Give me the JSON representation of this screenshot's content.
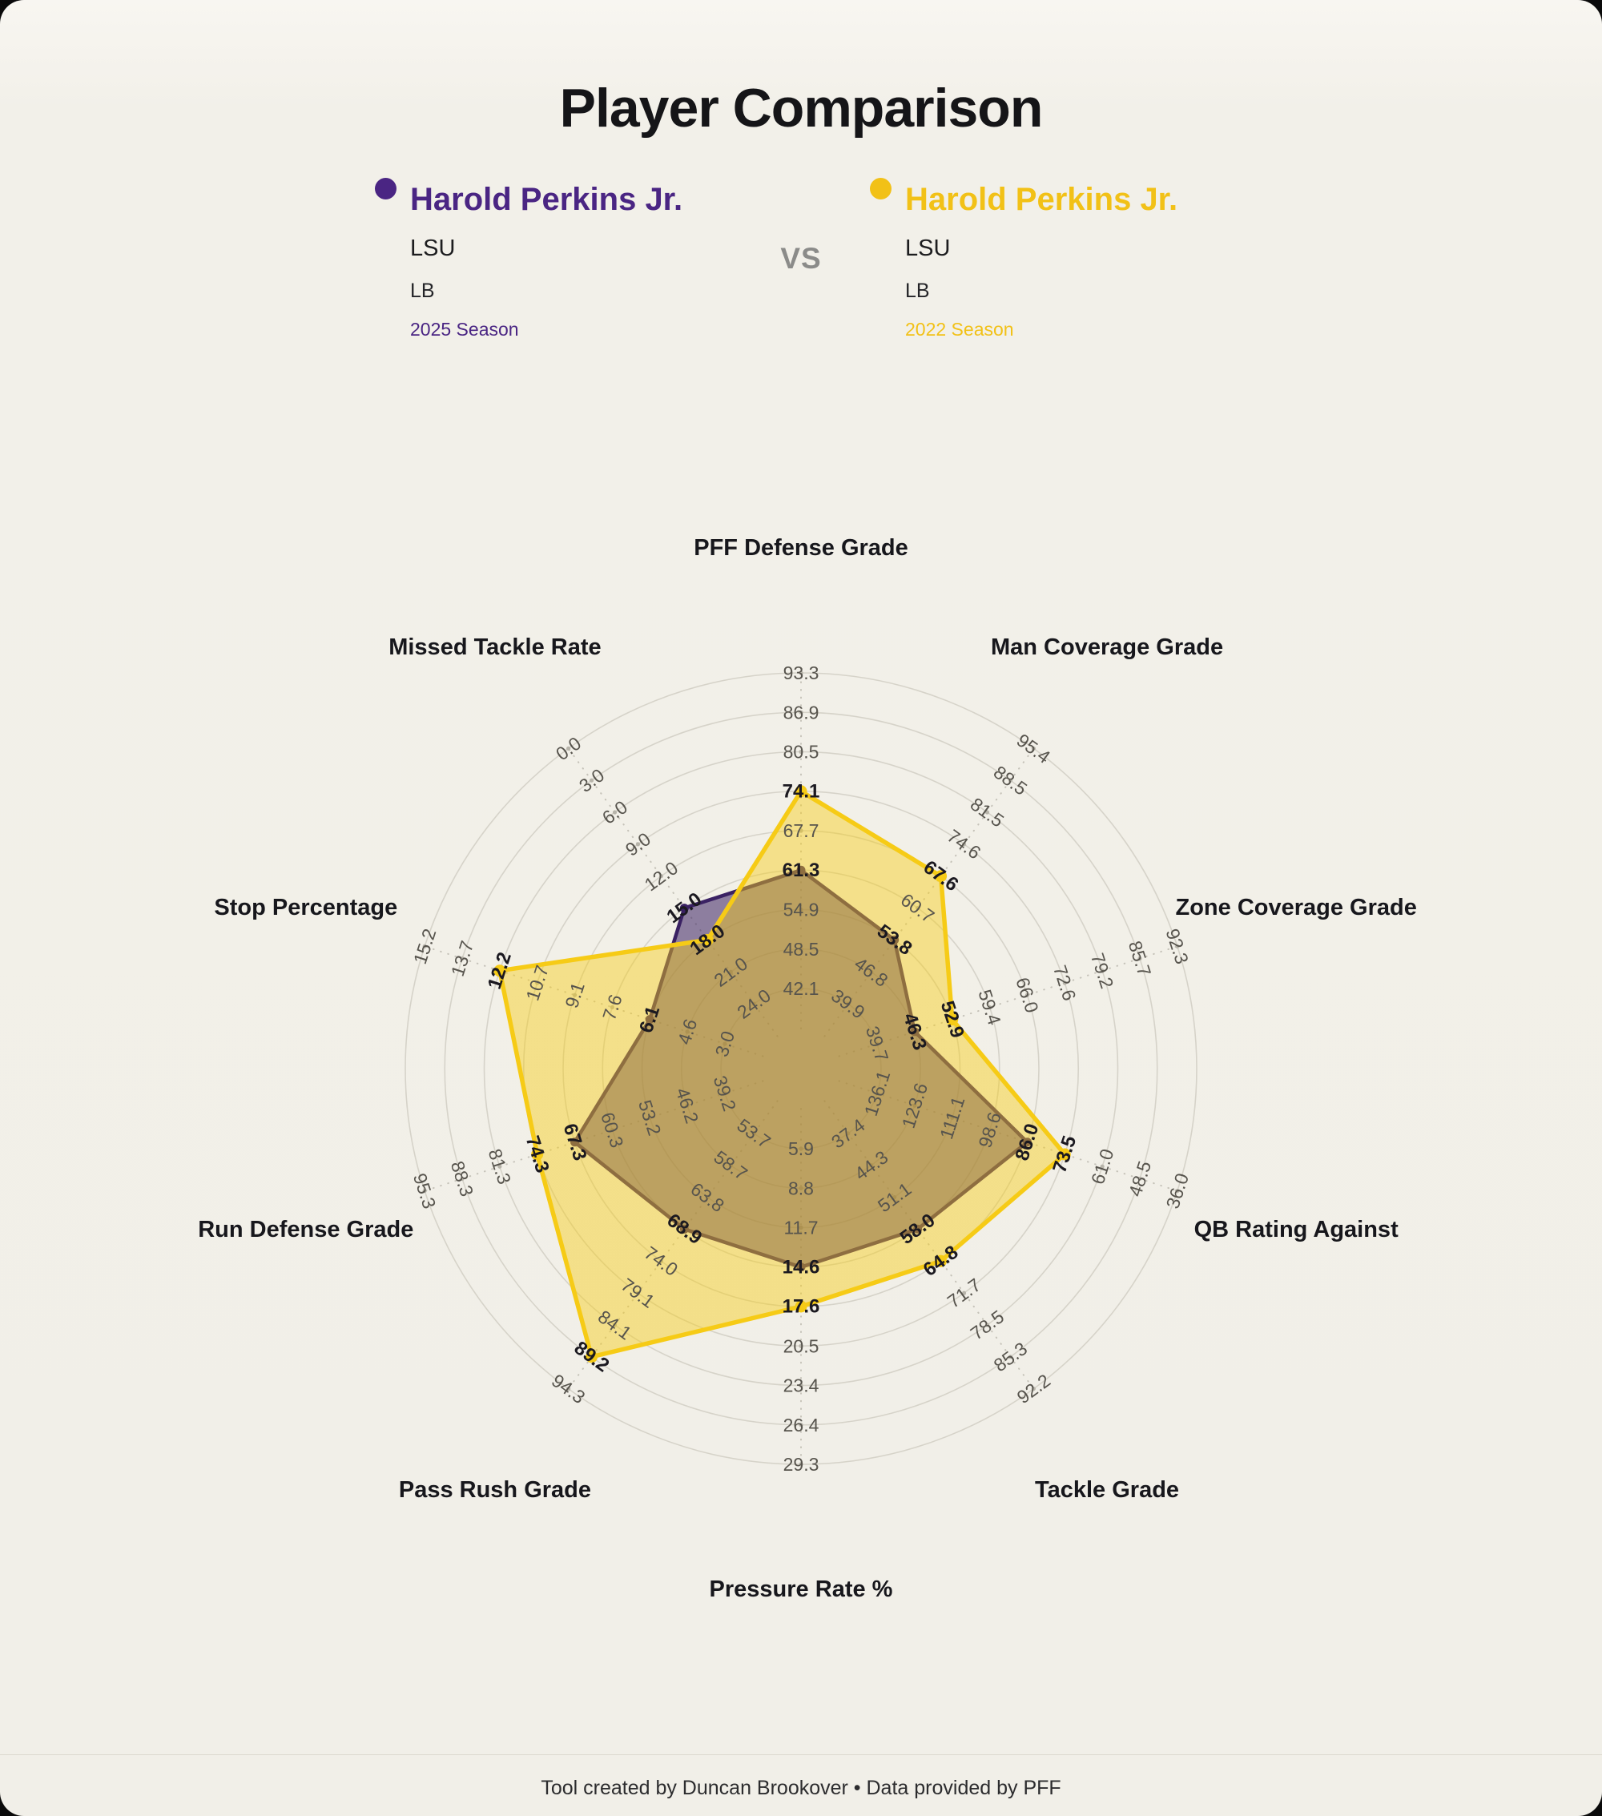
{
  "title": "Player Comparison",
  "vs_label": "VS",
  "players": [
    {
      "name": "Harold Perkins Jr.",
      "team": "LSU",
      "position": "LB",
      "season": "2025 Season",
      "color": "#4A2583"
    },
    {
      "name": "Harold Perkins Jr.",
      "team": "LSU",
      "position": "LB",
      "season": "2022 Season",
      "color": "#F2C117"
    }
  ],
  "footer": {
    "text": "Tool created by Duncan Brookover • Data provided by PFF"
  },
  "chart_data": {
    "type": "radar",
    "rings": 9,
    "grid": "circular",
    "axes": [
      {
        "label": "PFF Defense Grade",
        "ticks": [
          42.1,
          48.5,
          54.9,
          61.3,
          67.7,
          74.1,
          80.5,
          86.9,
          93.3
        ]
      },
      {
        "label": "Man Coverage Grade",
        "ticks": [
          39.9,
          46.8,
          53.8,
          60.7,
          67.6,
          74.6,
          81.5,
          88.5,
          95.4
        ]
      },
      {
        "label": "Zone Coverage Grade",
        "ticks": [
          39.7,
          46.3,
          52.9,
          59.4,
          66.0,
          72.6,
          79.2,
          85.7,
          92.3
        ]
      },
      {
        "label": "QB Rating Against",
        "ticks": [
          136.1,
          123.6,
          111.1,
          98.6,
          86.0,
          73.5,
          61.0,
          48.5,
          36.0
        ]
      },
      {
        "label": "Tackle Grade",
        "ticks": [
          37.4,
          44.3,
          51.1,
          58.0,
          64.8,
          71.7,
          78.5,
          85.3,
          92.2
        ]
      },
      {
        "label": "Pressure Rate %",
        "ticks": [
          5.9,
          8.8,
          11.7,
          14.6,
          17.6,
          20.5,
          23.4,
          26.4,
          29.3
        ]
      },
      {
        "label": "Pass Rush Grade",
        "ticks": [
          53.7,
          58.7,
          63.8,
          68.9,
          74.0,
          79.1,
          84.1,
          89.2,
          94.3
        ]
      },
      {
        "label": "Run Defense Grade",
        "ticks": [
          39.2,
          46.2,
          53.2,
          60.3,
          67.3,
          74.3,
          81.3,
          88.3,
          95.3
        ]
      },
      {
        "label": "Stop Percentage",
        "ticks": [
          3.0,
          4.6,
          6.1,
          7.6,
          9.1,
          10.7,
          12.2,
          13.7,
          15.2
        ]
      },
      {
        "label": "Missed Tackle Rate",
        "ticks": [
          24.0,
          21.0,
          18.0,
          15.0,
          12.0,
          9.0,
          6.0,
          3.0,
          0.0
        ]
      }
    ],
    "series": [
      {
        "name": "Harold Perkins Jr. — 2025 Season",
        "color": "#3A2163",
        "values": [
          61.3,
          53.8,
          46.3,
          86.0,
          58.0,
          14.6,
          68.9,
          67.3,
          6.1,
          15.0
        ]
      },
      {
        "name": "Harold Perkins Jr. — 2022 Season",
        "color": "#F6CB16",
        "values": [
          74.1,
          67.6,
          52.9,
          73.5,
          64.8,
          17.6,
          89.2,
          74.3,
          12.2,
          18.0
        ]
      }
    ]
  }
}
